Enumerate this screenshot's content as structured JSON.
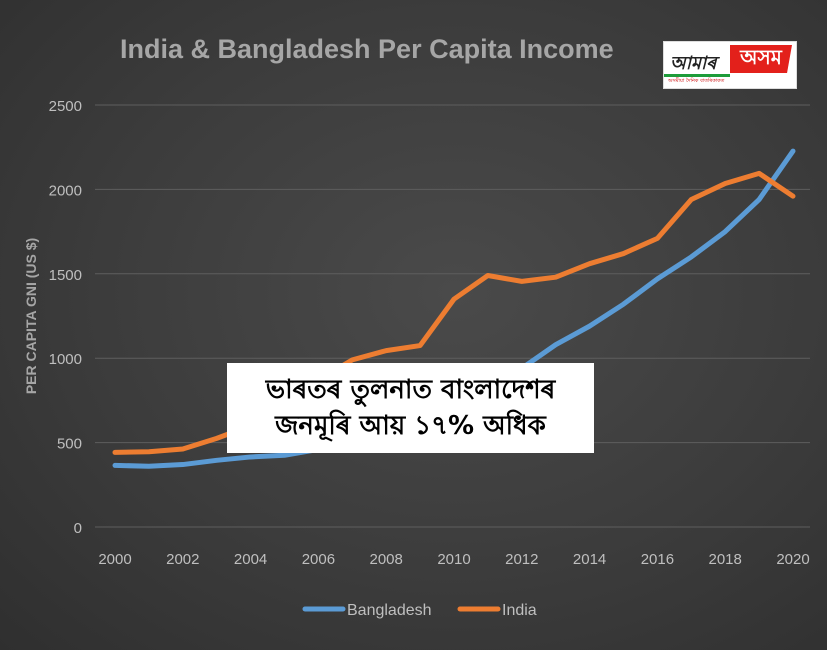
{
  "chart_data": {
    "type": "line",
    "title": "India & Bangladesh Per Capita Income",
    "ylabel": "PER CAPITA GNI (US $)",
    "xlabel": "",
    "ylim": [
      0,
      2500
    ],
    "yticks": [
      0,
      500,
      1000,
      1500,
      2000,
      2500
    ],
    "xlim": [
      2000,
      2020
    ],
    "xticks": [
      2000,
      2002,
      2004,
      2006,
      2008,
      2010,
      2012,
      2014,
      2016,
      2018,
      2020
    ],
    "grid": true,
    "legend_position": "bottom",
    "x": [
      2000,
      2001,
      2002,
      2003,
      2004,
      2005,
      2006,
      2007,
      2008,
      2009,
      2010,
      2011,
      2012,
      2013,
      2014,
      2015,
      2016,
      2017,
      2018,
      2019,
      2020
    ],
    "series": [
      {
        "name": "Bangladesh",
        "color": "#5b9bd5",
        "values": [
          365,
          360,
          370,
          395,
          415,
          425,
          460,
          520,
          600,
          680,
          770,
          850,
          940,
          1080,
          1190,
          1320,
          1470,
          1600,
          1750,
          1940,
          2227
        ]
      },
      {
        "name": "India",
        "color": "#ed7d31",
        "values": [
          442,
          446,
          462,
          525,
          600,
          720,
          870,
          990,
          1045,
          1075,
          1350,
          1490,
          1455,
          1480,
          1560,
          1620,
          1710,
          1940,
          2035,
          2095,
          1960
        ]
      }
    ]
  },
  "caption": {
    "line1": "ভাৰতৰ তুলনাত বাংলাদেশৰ",
    "line2": "জনমূৰি আয় ১৭% অধিক"
  },
  "logo": {
    "left_text": "আমাৰ",
    "right_text": "অসম",
    "tagline": "অসমীয়া দৈনিক বাতৰিকাকত",
    "brand_red": "#e3201b",
    "brand_green": "#1e9c3a"
  }
}
